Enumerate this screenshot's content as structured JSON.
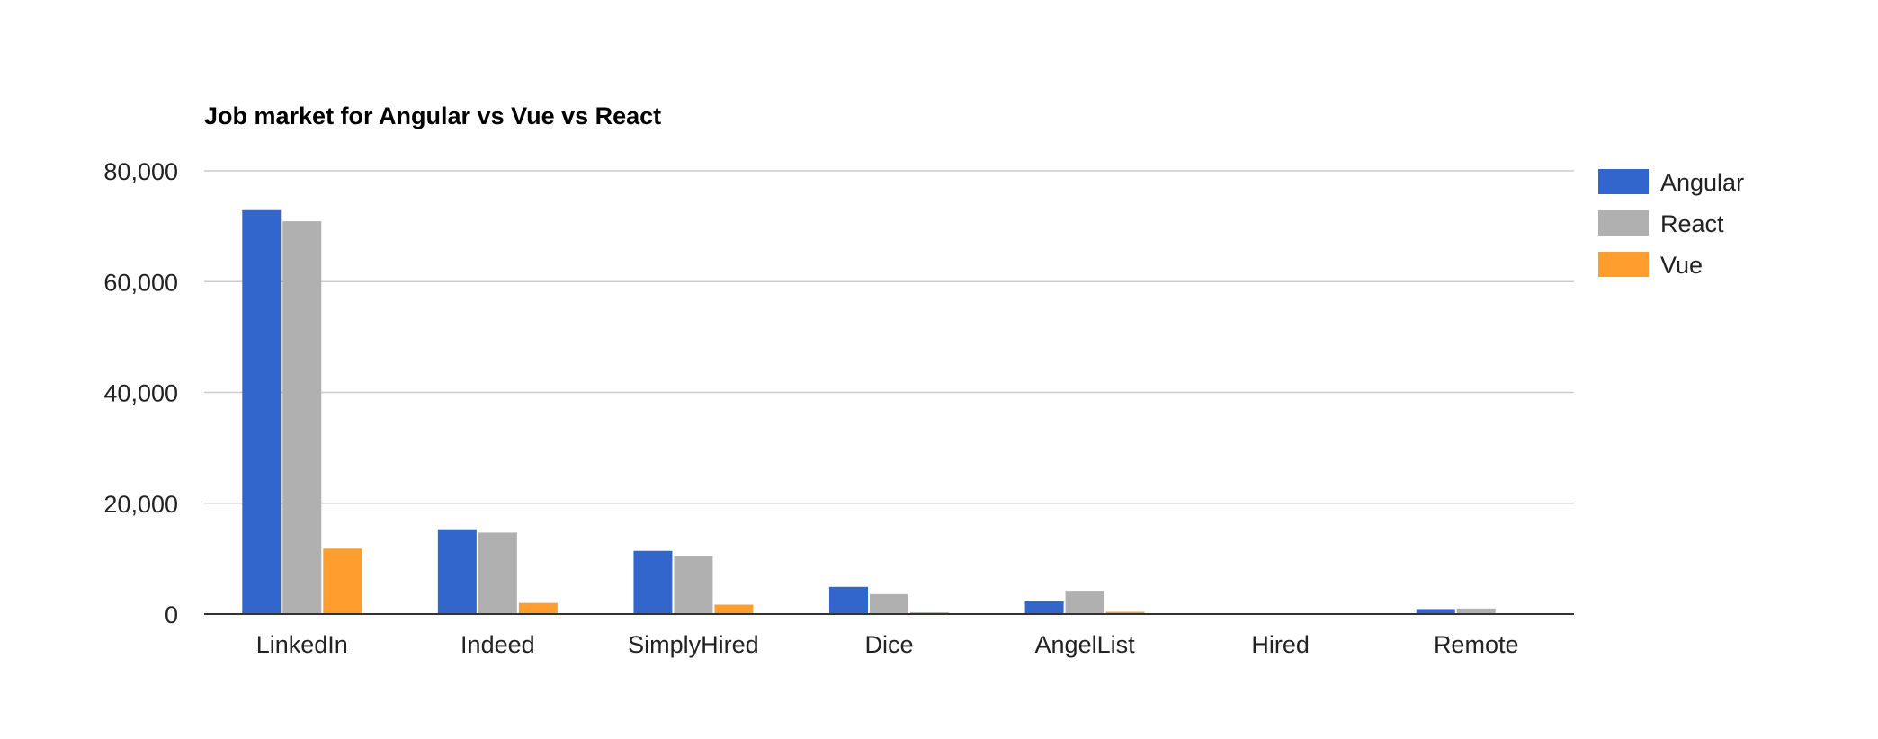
{
  "chart_data": {
    "type": "bar",
    "title": "Job market for Angular vs Vue vs React",
    "xlabel": "",
    "ylabel": "",
    "ylim": [
      0,
      80000
    ],
    "yticks": [
      0,
      20000,
      40000,
      60000,
      80000
    ],
    "ytick_labels": [
      "0",
      "20,000",
      "40,000",
      "60,000",
      "80,000"
    ],
    "grid": true,
    "legend_position": "right",
    "categories": [
      "LinkedIn",
      "Indeed",
      "SimplyHired",
      "Dice",
      "AngelList",
      "Hired",
      "Remote"
    ],
    "series": [
      {
        "name": "Angular",
        "color": "#3366cc",
        "values": [
          72900,
          15300,
          11400,
          4900,
          2300,
          0,
          900
        ]
      },
      {
        "name": "React",
        "color": "#b0b0b0",
        "values": [
          70900,
          14700,
          10400,
          3600,
          4200,
          0,
          1000
        ]
      },
      {
        "name": "Vue",
        "color": "#ff9e2e",
        "values": [
          11800,
          2000,
          1700,
          300,
          400,
          0,
          100
        ]
      }
    ]
  }
}
